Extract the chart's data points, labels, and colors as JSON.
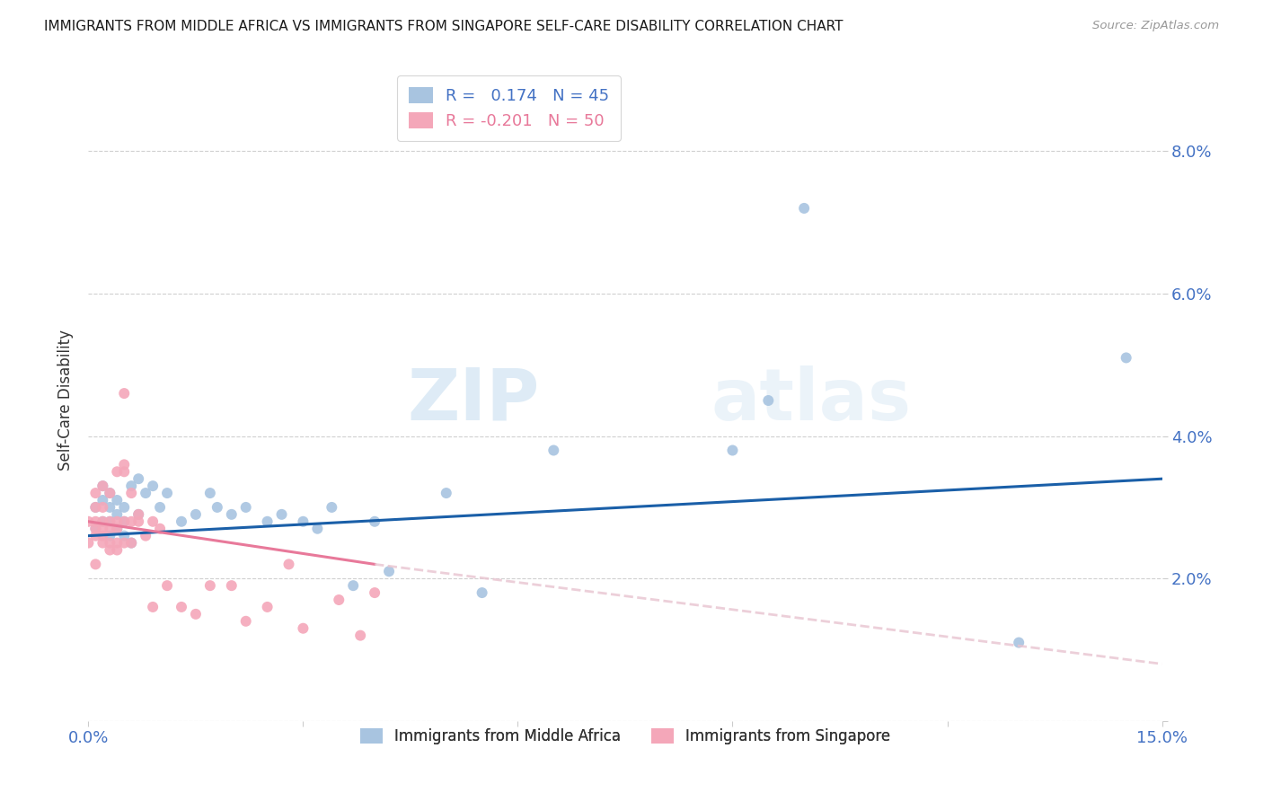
{
  "title": "IMMIGRANTS FROM MIDDLE AFRICA VS IMMIGRANTS FROM SINGAPORE SELF-CARE DISABILITY CORRELATION CHART",
  "source": "Source: ZipAtlas.com",
  "ylabel_label": "Self-Care Disability",
  "x_min": 0.0,
  "x_max": 0.15,
  "y_min": 0.0,
  "y_max": 0.09,
  "x_ticks": [
    0.0,
    0.03,
    0.06,
    0.09,
    0.12,
    0.15
  ],
  "x_tick_labels": [
    "0.0%",
    "",
    "",
    "",
    "",
    "15.0%"
  ],
  "y_ticks": [
    0.0,
    0.02,
    0.04,
    0.06,
    0.08
  ],
  "y_tick_labels_right": [
    "",
    "2.0%",
    "4.0%",
    "6.0%",
    "8.0%"
  ],
  "series1_name": "Immigrants from Middle Africa",
  "series1_color": "#a8c4e0",
  "series1_R": "0.174",
  "series1_N": "45",
  "series1_x": [
    0.001,
    0.001,
    0.002,
    0.002,
    0.002,
    0.003,
    0.003,
    0.003,
    0.003,
    0.004,
    0.004,
    0.004,
    0.005,
    0.005,
    0.005,
    0.006,
    0.006,
    0.007,
    0.007,
    0.008,
    0.009,
    0.01,
    0.011,
    0.013,
    0.015,
    0.017,
    0.018,
    0.02,
    0.022,
    0.025,
    0.027,
    0.03,
    0.032,
    0.034,
    0.037,
    0.04,
    0.042,
    0.05,
    0.055,
    0.065,
    0.09,
    0.095,
    0.1,
    0.13,
    0.145
  ],
  "series1_y": [
    0.027,
    0.03,
    0.028,
    0.031,
    0.033,
    0.026,
    0.028,
    0.03,
    0.032,
    0.027,
    0.029,
    0.031,
    0.026,
    0.028,
    0.03,
    0.033,
    0.025,
    0.034,
    0.029,
    0.032,
    0.033,
    0.03,
    0.032,
    0.028,
    0.029,
    0.032,
    0.03,
    0.029,
    0.03,
    0.028,
    0.029,
    0.028,
    0.027,
    0.03,
    0.019,
    0.028,
    0.021,
    0.032,
    0.018,
    0.038,
    0.038,
    0.045,
    0.072,
    0.011,
    0.051
  ],
  "series2_name": "Immigrants from Singapore",
  "series2_color": "#f4a7b9",
  "series2_R": "-0.201",
  "series2_N": "50",
  "series2_x": [
    0.0,
    0.0,
    0.001,
    0.001,
    0.001,
    0.001,
    0.001,
    0.001,
    0.002,
    0.002,
    0.002,
    0.002,
    0.002,
    0.002,
    0.003,
    0.003,
    0.003,
    0.003,
    0.003,
    0.004,
    0.004,
    0.004,
    0.004,
    0.004,
    0.005,
    0.005,
    0.005,
    0.005,
    0.005,
    0.006,
    0.006,
    0.006,
    0.007,
    0.007,
    0.008,
    0.009,
    0.009,
    0.01,
    0.011,
    0.013,
    0.015,
    0.017,
    0.02,
    0.022,
    0.025,
    0.028,
    0.03,
    0.035,
    0.038,
    0.04
  ],
  "series2_y": [
    0.025,
    0.028,
    0.026,
    0.027,
    0.028,
    0.03,
    0.032,
    0.022,
    0.025,
    0.026,
    0.027,
    0.028,
    0.03,
    0.033,
    0.024,
    0.025,
    0.027,
    0.028,
    0.032,
    0.024,
    0.025,
    0.027,
    0.028,
    0.035,
    0.025,
    0.028,
    0.035,
    0.036,
    0.046,
    0.025,
    0.028,
    0.032,
    0.029,
    0.028,
    0.026,
    0.016,
    0.028,
    0.027,
    0.019,
    0.016,
    0.015,
    0.019,
    0.019,
    0.014,
    0.016,
    0.022,
    0.013,
    0.017,
    0.012,
    0.018
  ],
  "trend1_color": "#1a5fa8",
  "trend2_color": "#e8799a",
  "trend2_dash_color": "#e8c4d0",
  "watermark_zip": "ZIP",
  "watermark_atlas": "atlas",
  "bg_color": "#ffffff",
  "grid_color": "#d0d0d0",
  "tick_color": "#4472c4",
  "title_color": "#1a1a1a",
  "legend_color_R1": "#4472c4",
  "legend_color_R2": "#e8799a",
  "marker_size": 75,
  "trend1_intercept_x0": 0.0,
  "trend1_y_at_x0": 0.026,
  "trend1_y_at_x15": 0.034,
  "trend2_intercept_x0": 0.0,
  "trend2_y_at_x0": 0.028,
  "trend2_solid_end_x": 0.04,
  "trend2_y_at_solid_end": 0.022,
  "trend2_y_at_x15": 0.008
}
